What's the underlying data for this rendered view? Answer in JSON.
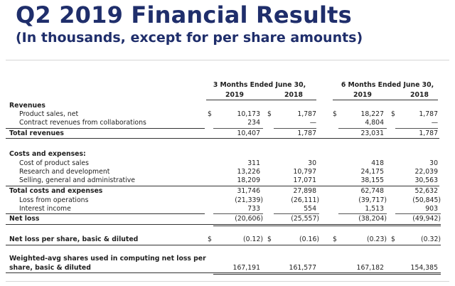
{
  "header": {
    "title": "Q2 2019 Financial Results",
    "subtitle": "(In thousands, except for per share amounts)"
  },
  "columns": {
    "period_3m": "3 Months Ended June 30,",
    "period_6m": "6 Months Ended June 30,",
    "year_2019": "2019",
    "year_2018": "2018"
  },
  "currency_symbol": "$",
  "rows": {
    "revenues": {
      "label": "Revenues"
    },
    "product_sales": {
      "label": "Product sales, net",
      "v": [
        "10,173",
        "1,787",
        "18,227",
        "1,787"
      ]
    },
    "contract_revenues": {
      "label": "Contract revenues from collaborations",
      "v": [
        "234",
        "—",
        "4,804",
        "—"
      ]
    },
    "total_revenues": {
      "label": "Total revenues",
      "v": [
        "10,407",
        "1,787",
        "23,031",
        "1,787"
      ]
    },
    "costs_expenses": {
      "label": "Costs and expenses:"
    },
    "cost_product_sales": {
      "label": "Cost of product sales",
      "v": [
        "311",
        "30",
        "418",
        "30"
      ]
    },
    "research_development": {
      "label": "Research and development",
      "v": [
        "13,226",
        "10,797",
        "24,175",
        "22,039"
      ]
    },
    "sga": {
      "label": "Selling, general and administrative",
      "v": [
        "18,209",
        "17,071",
        "38,155",
        "30,563"
      ]
    },
    "total_costs": {
      "label": "Total costs and expenses",
      "v": [
        "31,746",
        "27,898",
        "62,748",
        "52,632"
      ]
    },
    "loss_operations": {
      "label": "Loss from operations",
      "v": [
        "(21,339)",
        "(26,111)",
        "(39,717)",
        "(50,845)"
      ]
    },
    "interest_income": {
      "label": "Interest income",
      "v": [
        "733",
        "554",
        "1,513",
        "903"
      ]
    },
    "net_loss": {
      "label": "Net loss",
      "v": [
        "(20,606)",
        "(25,557)",
        "(38,204)",
        "(49,942)"
      ]
    },
    "net_loss_per_share": {
      "label": "Net loss per share, basic & diluted",
      "v": [
        "(0.12)",
        "(0.16)",
        "(0.23)",
        "(0.32)"
      ]
    },
    "weighted_avg_shares": {
      "label_1": "Weighted-avg shares used in computing net loss per",
      "label_2": "share, basic & diluted",
      "v": [
        "167,191",
        "161,577",
        "167,182",
        "154,385"
      ]
    }
  }
}
